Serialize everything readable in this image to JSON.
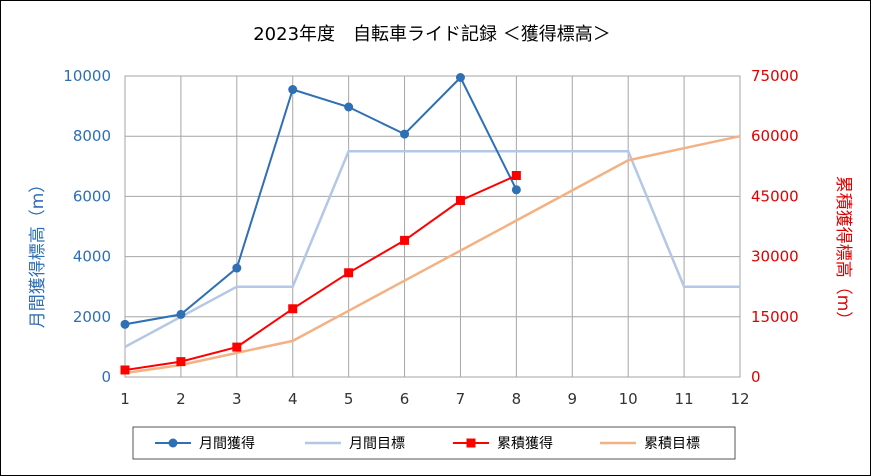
{
  "chart_data": {
    "type": "line",
    "title": "2023年度　自転車ライド記録 ＜獲得標高＞",
    "x": [
      1,
      2,
      3,
      4,
      5,
      6,
      7,
      8,
      9,
      10,
      11,
      12
    ],
    "xlim": [
      1,
      12
    ],
    "y_left": {
      "label": "月間獲得標高（m）",
      "range": [
        0,
        10000
      ],
      "ticks": [
        "0",
        "2000",
        "4000",
        "6000",
        "8000",
        "10000"
      ],
      "color": "#2e6fb5"
    },
    "y_right": {
      "label": "累積獲得標高（m）",
      "range": [
        0,
        75000
      ],
      "ticks": [
        "0",
        "15000",
        "30000",
        "45000",
        "60000",
        "75000"
      ],
      "color": "#e00000"
    },
    "grid": true,
    "legend_position": "bottom",
    "series": [
      {
        "name": "月間獲得",
        "axis": "left",
        "color": "#2e6fb5",
        "marker": "circle",
        "x": [
          1,
          2,
          3,
          4,
          5,
          6,
          7,
          8
        ],
        "values": [
          1750,
          2080,
          3620,
          9550,
          8970,
          8070,
          9950,
          6220
        ]
      },
      {
        "name": "月間目標",
        "axis": "left",
        "color": "#b4c7e7",
        "marker": "none",
        "x": [
          1,
          2,
          3,
          4,
          5,
          6,
          7,
          8,
          9,
          10,
          11,
          12
        ],
        "values": [
          1000,
          2000,
          3000,
          3000,
          7500,
          7500,
          7500,
          7500,
          7500,
          7500,
          3000,
          3000
        ]
      },
      {
        "name": "累積獲得",
        "axis": "right",
        "color": "#ff0000",
        "marker": "square",
        "x": [
          1,
          2,
          3,
          4,
          5,
          6,
          7,
          8
        ],
        "values": [
          1750,
          3830,
          7450,
          17000,
          25970,
          34040,
          43990,
          50210
        ]
      },
      {
        "name": "累積目標",
        "axis": "right",
        "color": "#f4b183",
        "marker": "none",
        "x": [
          1,
          2,
          3,
          4,
          5,
          6,
          7,
          8,
          9,
          10,
          11,
          12
        ],
        "values": [
          1000,
          3000,
          6000,
          9000,
          16500,
          24000,
          31500,
          39000,
          46500,
          54000,
          57000,
          60000
        ]
      }
    ]
  }
}
